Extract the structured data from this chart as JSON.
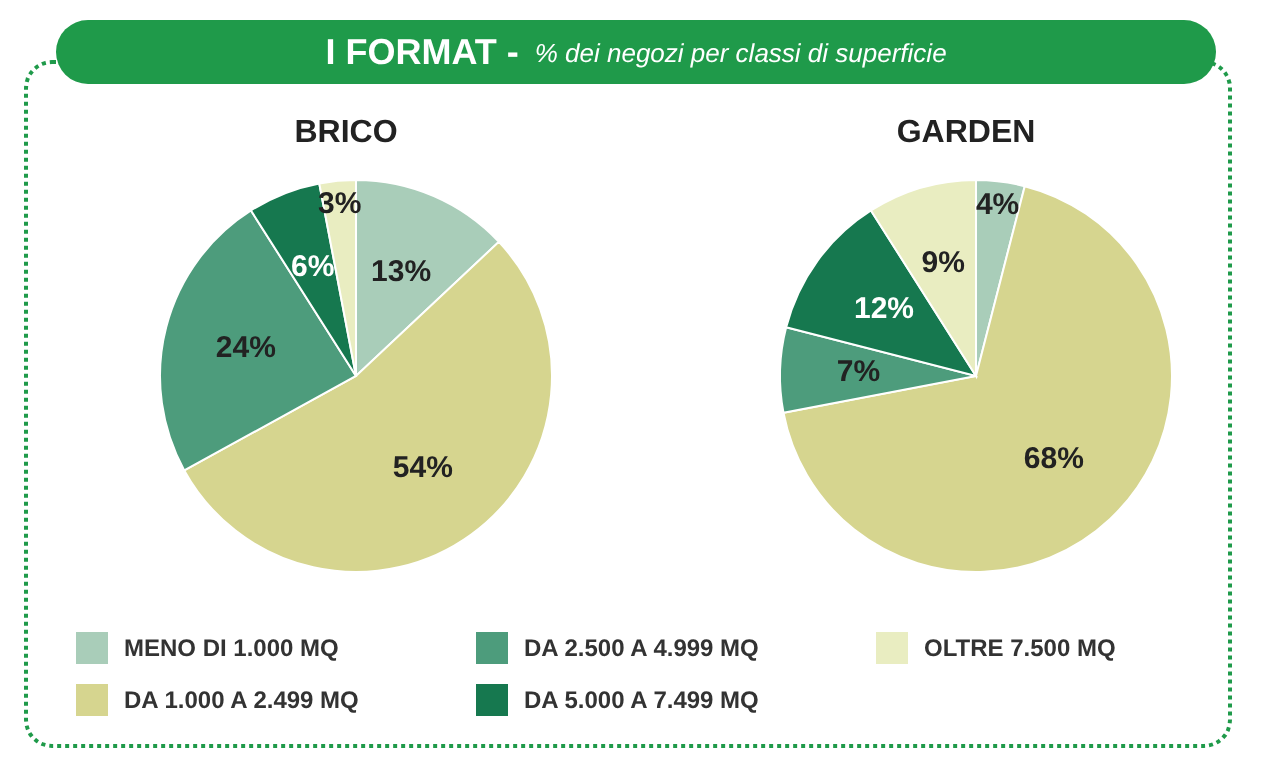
{
  "chart_data": [
    {
      "type": "pie",
      "title": "BRICO",
      "categories": [
        "MENO DI 1.000 MQ",
        "DA 1.000 A 2.499 MQ",
        "DA 2.500 A 4.999 MQ",
        "DA 5.000 A 7.499 MQ",
        "OLTRE 7.500 MQ"
      ],
      "values": [
        13,
        54,
        24,
        6,
        3
      ],
      "value_labels": [
        "13%",
        "54%",
        "24%",
        "6%",
        "3%"
      ],
      "colors": [
        "#a9cdb9",
        "#d6d58f",
        "#4d9c7c",
        "#16784f",
        "#e9edc1"
      ],
      "legend": "bottom",
      "annotations": [
        "I FORMAT -",
        "% dei negozi per classi di superficie"
      ]
    },
    {
      "type": "pie",
      "title": "GARDEN",
      "categories": [
        null,
        null,
        null,
        null,
        null
      ],
      "values": [
        4,
        68,
        7,
        12,
        9
      ],
      "value_labels": [
        "4%",
        "68%",
        "7%",
        "12%",
        "9%"
      ],
      "colors": [
        "#a9cdb9",
        "#d6d58f",
        "#4d9c7c",
        "#16784f",
        "#e9edc1"
      ]
    }
  ]
}
